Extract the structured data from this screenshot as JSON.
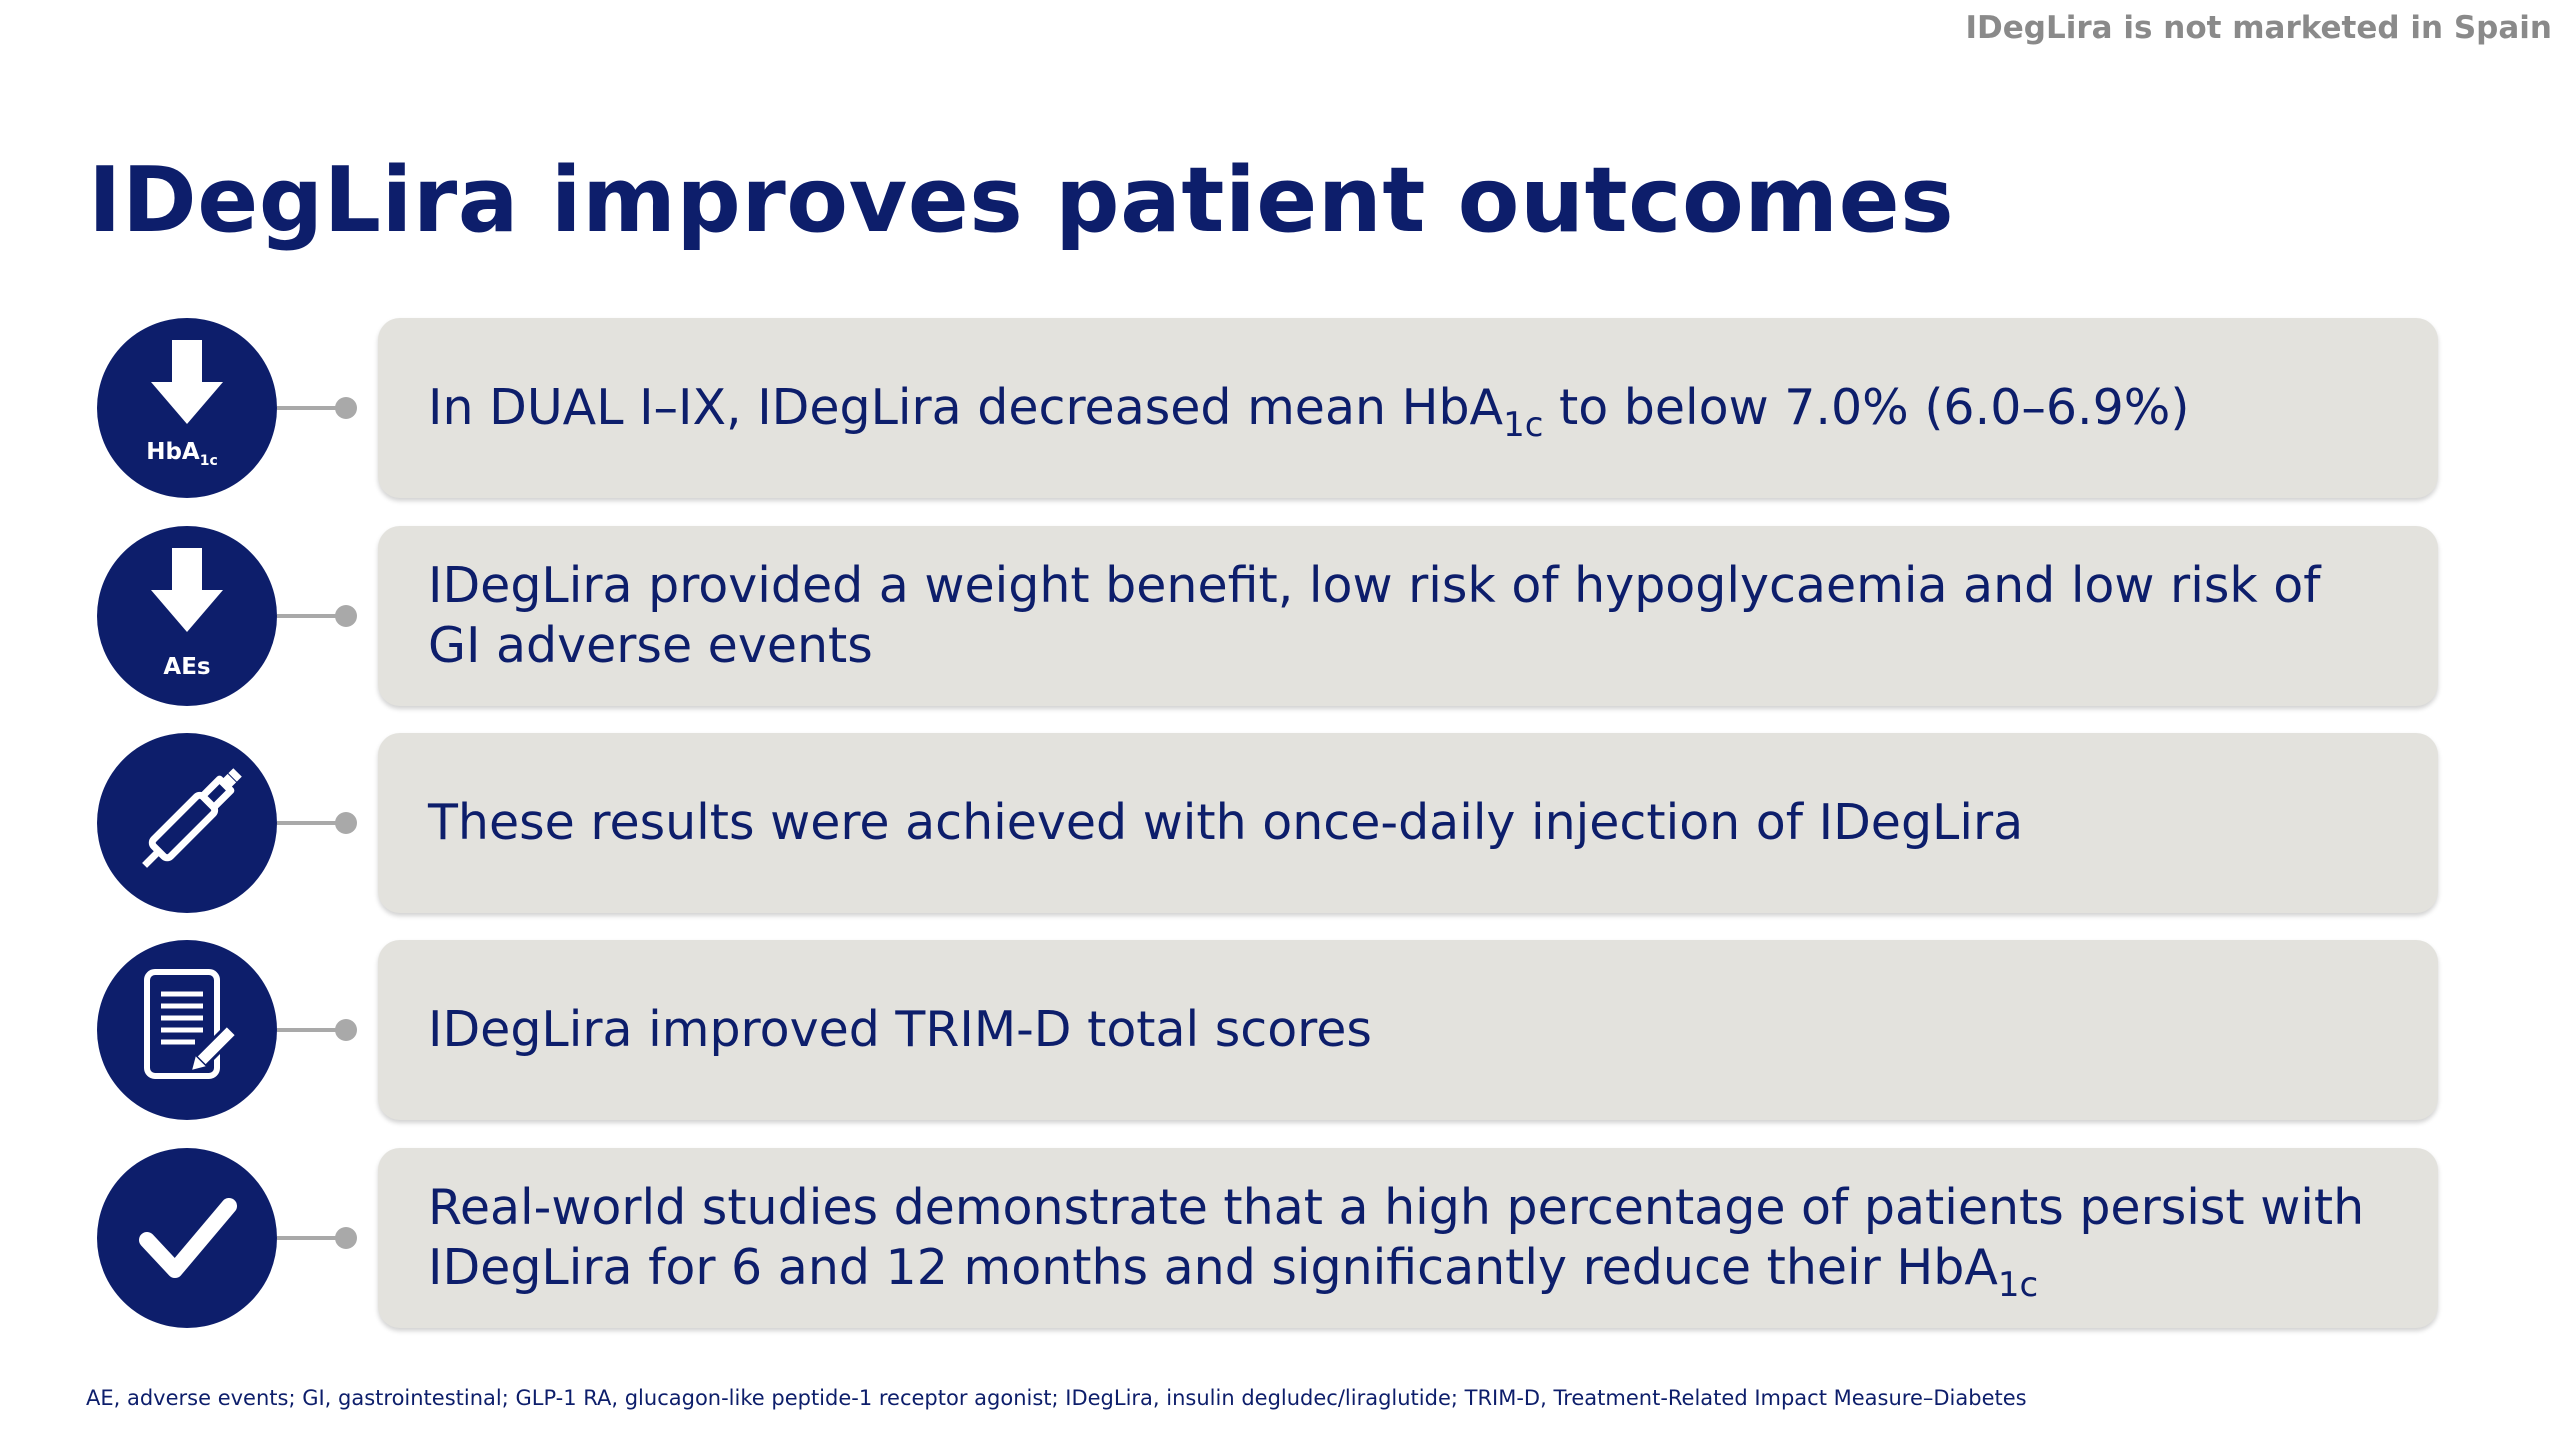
{
  "disclaimer": "IDegLira is not marketed in Spain",
  "title": "IDegLira improves patient outcomes",
  "colors": {
    "primary_navy": "#0d1e6b",
    "box_gray": "#e3e2dd",
    "connector_gray": "#a9a9a9",
    "disclaimer_gray": "#8a8a8a"
  },
  "rows": [
    {
      "icon": "down-arrow-icon",
      "icon_label_main": "HbA",
      "icon_label_sub": "1c",
      "text_before": "In DUAL I–IX, IDegLira decreased mean HbA",
      "text_sub": "1c",
      "text_after": " to below 7.0% (6.0–6.9%)"
    },
    {
      "icon": "down-arrow-icon",
      "icon_label": "AEs",
      "text": "IDegLira provided a weight benefit, low risk of hypoglycaemia and low risk of GI adverse events"
    },
    {
      "icon": "pen-injector-icon",
      "text": "These results were achieved with once-daily injection of IDegLira"
    },
    {
      "icon": "document-pen-icon",
      "text": "IDegLira improved TRIM-D total scores"
    },
    {
      "icon": "checkmark-icon",
      "text_before": "Real-world studies demonstrate that a high percentage of patients persist with IDegLira for 6 and 12 months and significantly reduce their HbA",
      "text_sub": "1c"
    }
  ],
  "footnote": "AE, adverse events; GI, gastrointestinal; GLP-1 RA, glucagon-like peptide-1 receptor agonist; IDegLira, insulin degludec/liraglutide; TRIM-D, Treatment-Related Impact Measure–Diabetes"
}
